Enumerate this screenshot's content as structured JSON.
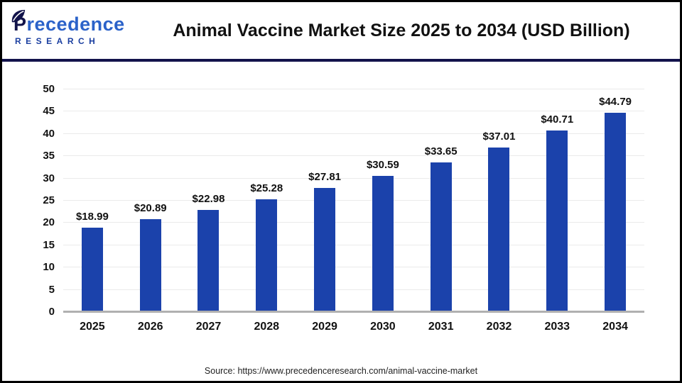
{
  "header": {
    "logo": {
      "initial": "P",
      "rest": "recedence",
      "subtitle": "RESEARCH"
    },
    "title": "Animal Vaccine Market Size 2025 to 2034 (USD Billion)"
  },
  "chart_data": {
    "type": "bar",
    "title": "Animal Vaccine Market Size 2025 to 2034 (USD Billion)",
    "categories": [
      "2025",
      "2026",
      "2027",
      "2028",
      "2029",
      "2030",
      "2031",
      "2032",
      "2033",
      "2034"
    ],
    "values": [
      18.99,
      20.89,
      22.98,
      25.28,
      27.81,
      30.59,
      33.65,
      37.01,
      40.71,
      44.79
    ],
    "labels": [
      "$18.99",
      "$20.89",
      "$22.98",
      "$25.28",
      "$27.81",
      "$30.59",
      "$33.65",
      "$37.01",
      "$40.71",
      "$44.79"
    ],
    "xlabel": "",
    "ylabel": "",
    "ylim": [
      0,
      50
    ],
    "ytick_step": 5,
    "yticks": [
      0,
      5,
      10,
      15,
      20,
      25,
      30,
      35,
      40,
      45,
      50
    ],
    "grid": "horizontal",
    "legend_position": "none",
    "bar_color": "#1b42ab"
  },
  "colors": {
    "bar": "#1b42ab",
    "separator": "#12124b",
    "grid": "#eaeaea",
    "baseline": "#b0b0b0",
    "logo_dark": "#12134a",
    "logo_blue": "#2b62c9"
  },
  "footer": {
    "source": "Source: https://www.precedenceresearch.com/animal-vaccine-market"
  }
}
